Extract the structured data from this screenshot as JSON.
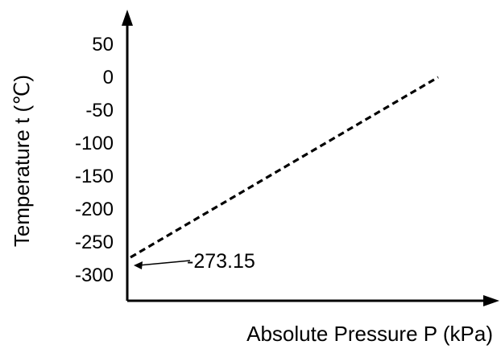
{
  "chart_data": {
    "type": "line",
    "title": "",
    "xlabel": "Absolute Pressure P (kPa)",
    "ylabel": "Temperature  t (℃)",
    "yticks": [
      50,
      0,
      -50,
      -100,
      -150,
      -200,
      -250,
      -300
    ],
    "ylim": [
      -340,
      75
    ],
    "x_tick_labels": false,
    "line_style": "dashed",
    "grid": false,
    "series": [
      {
        "x": [
          0,
          1
        ],
        "values": [
          -273.15,
          0
        ],
        "description_note": ""
      }
    ],
    "annotation": {
      "text": "-273.15",
      "points_to_value": -273.15
    }
  },
  "colors": {
    "axis": "#000000",
    "line": "#000000",
    "background": "#ffffff"
  }
}
